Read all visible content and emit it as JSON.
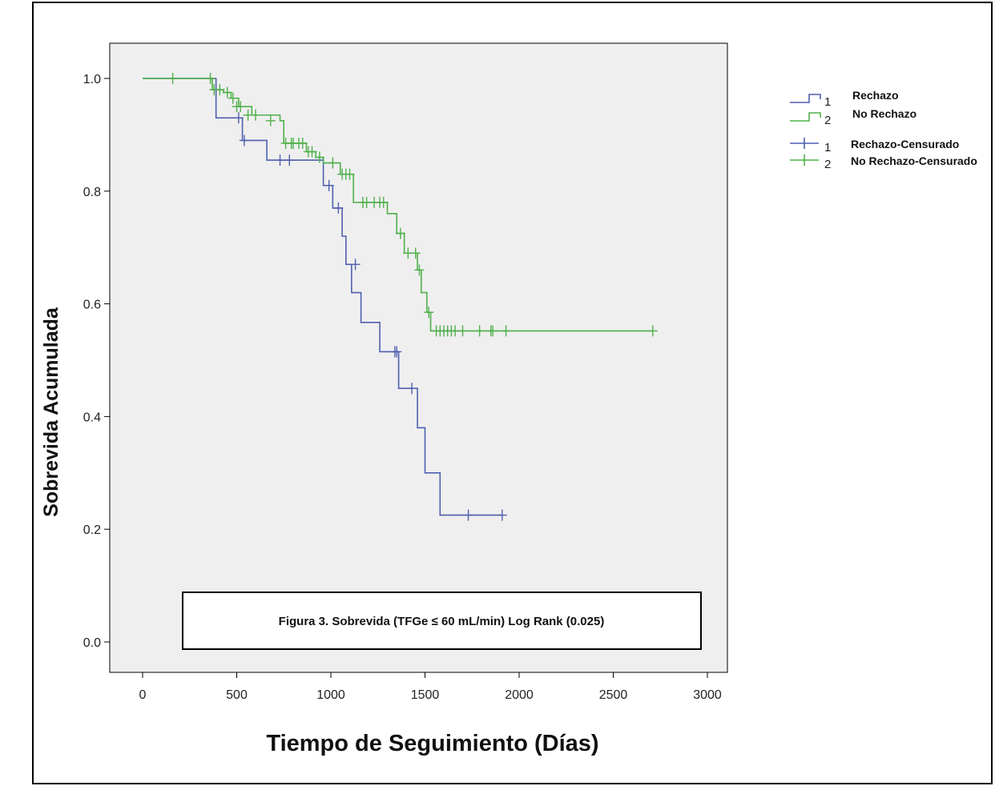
{
  "chart_data": {
    "type": "line",
    "step": true,
    "xlabel": "Tiempo de Seguimiento (Días)",
    "ylabel": "Sobrevida Acumulada",
    "xlim": [
      0,
      3000
    ],
    "ylim": [
      0,
      1.0
    ],
    "x_ticks": [
      0,
      500,
      1000,
      1500,
      2000,
      2500,
      3000
    ],
    "y_ticks": [
      "0.0",
      "0.2",
      "0.4",
      "0.6",
      "0.8",
      "1.0"
    ],
    "grid": false,
    "legend_position": "top-right, outside plot",
    "plot_background": "#efefef",
    "annotation": "Figura 3. Sobrevida (TFGe ≤ 60 mL/min) Log Rank (0.025)",
    "legend": [
      {
        "num": "1",
        "label": "Rechazo",
        "kind": "line",
        "color": "#4f5fae"
      },
      {
        "num": "2",
        "label": "No Rechazo",
        "kind": "line",
        "color": "#4fb04a"
      },
      {
        "num": "1",
        "label": "Rechazo-Censurado",
        "kind": "censor",
        "color": "#4f5fae"
      },
      {
        "num": "2",
        "label": "No Rechazo-Censurado",
        "kind": "censor",
        "color": "#4fb04a"
      }
    ],
    "series": [
      {
        "name": "Rechazo",
        "color": "#4f5fae",
        "x": [
          0,
          390,
          530,
          660,
          960,
          1010,
          1060,
          1080,
          1110,
          1160,
          1260,
          1360,
          1460,
          1500,
          1580,
          1910
        ],
        "y": [
          1.0,
          0.93,
          0.89,
          0.855,
          0.81,
          0.77,
          0.72,
          0.67,
          0.62,
          0.567,
          0.515,
          0.45,
          0.38,
          0.3,
          0.225,
          0.225
        ],
        "censored_x": [
          510,
          540,
          730,
          780,
          990,
          1040,
          1130,
          1340,
          1350,
          1430,
          1730,
          1910
        ],
        "censored_y": [
          0.93,
          0.89,
          0.855,
          0.855,
          0.81,
          0.77,
          0.67,
          0.515,
          0.515,
          0.45,
          0.225,
          0.225
        ]
      },
      {
        "name": "No Rechazo",
        "color": "#4fb04a",
        "x": [
          0,
          370,
          430,
          470,
          510,
          580,
          730,
          750,
          870,
          920,
          960,
          1050,
          1120,
          1300,
          1350,
          1390,
          1460,
          1480,
          1510,
          1530,
          2710
        ],
        "y": [
          1.0,
          0.98,
          0.975,
          0.965,
          0.95,
          0.935,
          0.925,
          0.885,
          0.87,
          0.86,
          0.85,
          0.83,
          0.78,
          0.76,
          0.725,
          0.69,
          0.66,
          0.62,
          0.585,
          0.552,
          0.552
        ],
        "censored_x": [
          160,
          360,
          380,
          410,
          450,
          480,
          500,
          520,
          560,
          600,
          680,
          760,
          790,
          800,
          830,
          850,
          880,
          900,
          940,
          1010,
          1060,
          1080,
          1100,
          1170,
          1190,
          1230,
          1260,
          1280,
          1370,
          1410,
          1450,
          1470,
          1520,
          1560,
          1580,
          1600,
          1620,
          1640,
          1660,
          1700,
          1790,
          1850,
          1860,
          1930,
          2710
        ],
        "censored_y": [
          1.0,
          1.0,
          0.98,
          0.98,
          0.975,
          0.965,
          0.95,
          0.95,
          0.935,
          0.935,
          0.925,
          0.885,
          0.885,
          0.885,
          0.885,
          0.885,
          0.87,
          0.87,
          0.86,
          0.85,
          0.83,
          0.83,
          0.83,
          0.78,
          0.78,
          0.78,
          0.78,
          0.78,
          0.725,
          0.69,
          0.69,
          0.66,
          0.585,
          0.552,
          0.552,
          0.552,
          0.552,
          0.552,
          0.552,
          0.552,
          0.552,
          0.552,
          0.552,
          0.552,
          0.552
        ]
      }
    ]
  }
}
